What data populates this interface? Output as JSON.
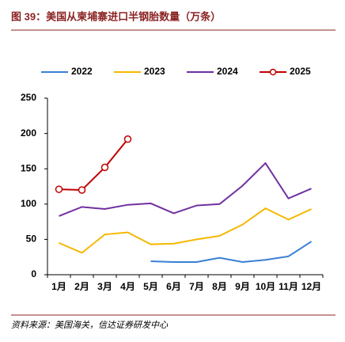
{
  "chart_data": {
    "type": "line",
    "title": "图 39：美国从柬埔寨进口半钢胎数量（万条）",
    "source": "资料来源：美国海关，信达证券研发中心",
    "categories": [
      "1月",
      "2月",
      "3月",
      "4月",
      "5月",
      "6月",
      "7月",
      "8月",
      "9月",
      "10月",
      "11月",
      "12月"
    ],
    "series": [
      {
        "name": "2022",
        "color": "#3a7fd5",
        "marker": false,
        "values": [
          null,
          null,
          null,
          null,
          19,
          18,
          18,
          24,
          18,
          21,
          26,
          47
        ]
      },
      {
        "name": "2023",
        "color": "#f5b800",
        "marker": false,
        "values": [
          45,
          31,
          57,
          60,
          43,
          44,
          50,
          55,
          71,
          94,
          78,
          93
        ]
      },
      {
        "name": "2024",
        "color": "#7030a0",
        "marker": false,
        "values": [
          83,
          96,
          93,
          99,
          101,
          87,
          98,
          100,
          126,
          158,
          108,
          122
        ]
      },
      {
        "name": "2025",
        "color": "#c00000",
        "marker": true,
        "values": [
          121,
          120,
          152,
          192,
          null,
          null,
          null,
          null,
          null,
          null,
          null,
          null
        ]
      }
    ],
    "ylim": [
      0,
      250
    ],
    "yticks": [
      0,
      50,
      100,
      150,
      200,
      250
    ],
    "grid": false,
    "legend": "top"
  }
}
